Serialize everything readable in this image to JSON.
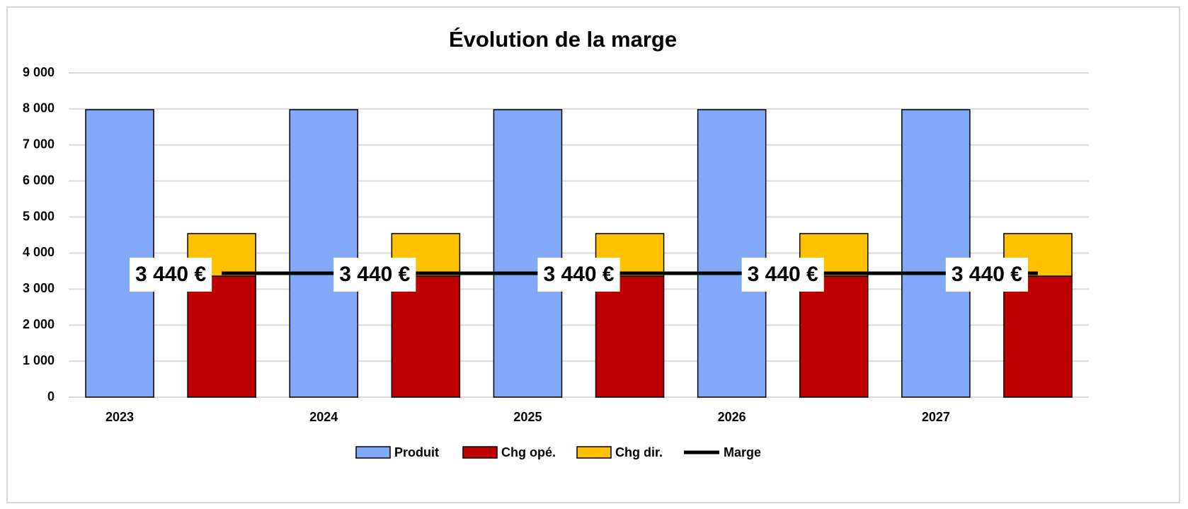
{
  "chart_data": {
    "type": "bar",
    "title": "Évolution de la marge",
    "categories": [
      "2023",
      "2024",
      "2025",
      "2026",
      "2027"
    ],
    "series": [
      {
        "name": "Produit",
        "color": "#82a8f8",
        "values": [
          7980,
          7980,
          7980,
          7980,
          7980
        ]
      },
      {
        "name": "Chg opé.",
        "color": "#c00000",
        "stacked": true,
        "values": [
          3360,
          3360,
          3360,
          3360,
          3360
        ]
      },
      {
        "name": "Chg dir.",
        "color": "#ffc000",
        "stacked": true,
        "values": [
          1180,
          1180,
          1180,
          1180,
          1180
        ]
      },
      {
        "name": "Marge",
        "color": "#000000",
        "type": "line",
        "values": [
          3440,
          3440,
          3440,
          3440,
          3440
        ],
        "value_labels": [
          "3 440 €",
          "3 440 €",
          "3 440 €",
          "3 440 €",
          "3 440 €"
        ]
      }
    ],
    "ylim": [
      0,
      9000
    ],
    "yticks": [
      0,
      {
        "value": 1000,
        "label": "1 000"
      },
      {
        "value": 2000,
        "label": "2 000"
      },
      {
        "value": 3000,
        "label": "3 000"
      },
      {
        "value": 4000,
        "label": "4 000"
      },
      {
        "value": 5000,
        "label": "5 000"
      },
      {
        "value": 6000,
        "label": "6 000"
      },
      {
        "value": 7000,
        "label": "7 000"
      },
      {
        "value": 8000,
        "label": "8 000"
      },
      {
        "value": 9000,
        "label": "9 000"
      }
    ],
    "grid": true,
    "legend": "bottom"
  }
}
